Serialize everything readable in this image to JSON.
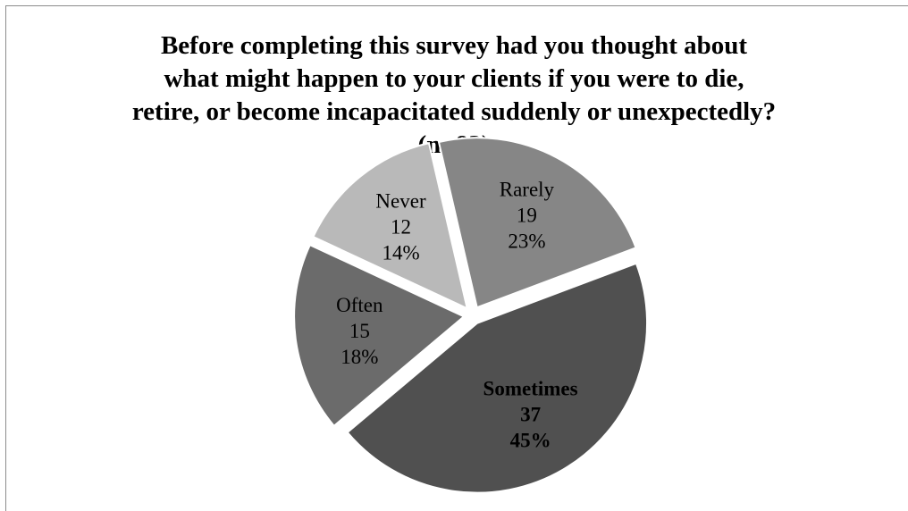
{
  "chart_data": {
    "type": "pie",
    "title_lines": [
      "Before completing this survey had you thought about",
      "what might happen to your clients if you were to die,",
      "retire, or become incapacitated suddenly or unexpectedly?",
      "(n=83)"
    ],
    "categories": [
      "Rarely",
      "Sometimes",
      "Often",
      "Never"
    ],
    "values": [
      19,
      37,
      15,
      12
    ],
    "percent_labels": [
      "23%",
      "45%",
      "18%",
      "14%"
    ],
    "colors": [
      "#868686",
      "#505050",
      "#6b6b6b",
      "#b9b9b9"
    ],
    "label_colors": [
      "#000000",
      "#000000",
      "#000000",
      "#000000"
    ],
    "bold_labels": [
      false,
      true,
      false,
      false
    ],
    "start_angle_deg": -13,
    "exploded": true,
    "legend": "none"
  }
}
